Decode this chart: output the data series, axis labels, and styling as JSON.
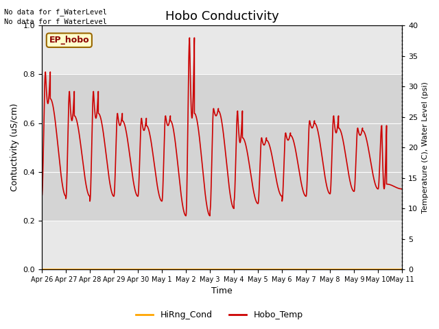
{
  "title": "Hobo Conductivity",
  "xlabel": "Time",
  "ylabel_left": "Contuctivity (uS/cm)",
  "ylabel_right": "Temperature (C), Water Level (psi)",
  "annotation_line1": "No data for f_WaterLevel",
  "annotation_line2": "No data for f_WaterLevel",
  "ep_hobo_label": "EP_hobo",
  "xlim_start": 0,
  "xlim_end": 15,
  "ylim_left": [
    0.0,
    1.0
  ],
  "ylim_right": [
    0,
    40
  ],
  "yticks_left": [
    0.0,
    0.2,
    0.4,
    0.6,
    0.8,
    1.0
  ],
  "yticks_right": [
    0,
    5,
    10,
    15,
    20,
    25,
    30,
    35,
    40
  ],
  "x_tick_labels": [
    "Apr 26",
    "Apr 27",
    "Apr 28",
    "Apr 29",
    "Apr 30",
    "May 1",
    "May 2",
    "May 3",
    "May 4",
    "May 5",
    "May 6",
    "May 7",
    "May 8",
    "May 9",
    "May 10",
    "May 11"
  ],
  "background_color": "#ffffff",
  "plot_bg_color": "#e8e8e8",
  "grid_color": "#ffffff",
  "hband_y1": 0.2,
  "hband_y2": 0.8,
  "hband_color": "#d4d4d4",
  "hiRng_color": "#FFA500",
  "hobo_temp_color": "#cc0000",
  "legend_hiRng": "HiRng_Cond",
  "legend_hobo": "Hobo_Temp",
  "daily_cycles": [
    {
      "start": 0.0,
      "peak1": 0.81,
      "peak2": 0.7,
      "trough": 0.3,
      "trough2": 0.3
    },
    {
      "start": 1.0,
      "peak1": 0.73,
      "peak2": 0.63,
      "trough": 0.29,
      "trough2": 0.3
    },
    {
      "start": 2.0,
      "peak1": 0.73,
      "peak2": 0.64,
      "trough": 0.28,
      "trough2": 0.3
    },
    {
      "start": 3.0,
      "peak1": 0.64,
      "peak2": 0.61,
      "trough": 0.3,
      "trough2": 0.3
    },
    {
      "start": 4.0,
      "peak1": 0.62,
      "peak2": 0.59,
      "trough": 0.3,
      "trough2": 0.28
    },
    {
      "start": 5.0,
      "peak1": 0.63,
      "peak2": 0.61,
      "trough": 0.28,
      "trough2": 0.22
    },
    {
      "start": 6.0,
      "peak1": 0.95,
      "peak2": 0.64,
      "trough": 0.22,
      "trough2": 0.22
    },
    {
      "start": 7.0,
      "peak1": 0.66,
      "peak2": 0.65,
      "trough": 0.24,
      "trough2": 0.25
    },
    {
      "start": 8.0,
      "peak1": 0.65,
      "peak2": 0.54,
      "trough": 0.28,
      "trough2": 0.27
    },
    {
      "start": 9.0,
      "peak1": 0.54,
      "peak2": 0.53,
      "trough": 0.27,
      "trough2": 0.3
    },
    {
      "start": 10.0,
      "peak1": 0.56,
      "peak2": 0.55,
      "trough": 0.28,
      "trough2": 0.3
    },
    {
      "start": 11.0,
      "peak1": 0.61,
      "peak2": 0.6,
      "trough": 0.3,
      "trough2": 0.31
    },
    {
      "start": 12.0,
      "peak1": 0.63,
      "peak2": 0.58,
      "trough": 0.31,
      "trough2": 0.32
    },
    {
      "start": 13.0,
      "peak1": 0.58,
      "peak2": 0.57,
      "trough": 0.32,
      "trough2": 0.33
    },
    {
      "start": 14.0,
      "peak1": 0.59,
      "peak2": 0.35,
      "trough": 0.33,
      "trough2": 0.33
    }
  ]
}
